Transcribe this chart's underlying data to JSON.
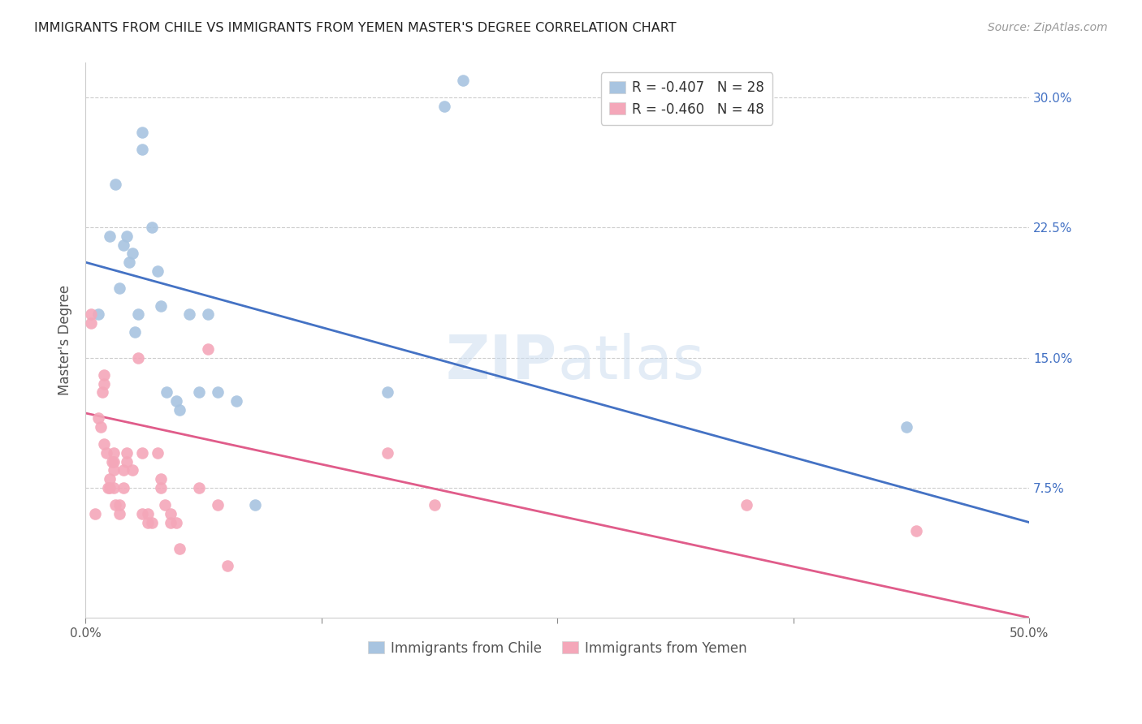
{
  "title": "IMMIGRANTS FROM CHILE VS IMMIGRANTS FROM YEMEN MASTER'S DEGREE CORRELATION CHART",
  "source": "Source: ZipAtlas.com",
  "ylabel": "Master's Degree",
  "xlim": [
    0.0,
    0.5
  ],
  "ylim": [
    0.0,
    0.32
  ],
  "ytick_positions": [
    0.075,
    0.15,
    0.225,
    0.3
  ],
  "ytick_labels_right": [
    "7.5%",
    "15.0%",
    "22.5%",
    "30.0%"
  ],
  "grid_color": "#cccccc",
  "background_color": "#ffffff",
  "chile_color": "#a8c4e0",
  "yemen_color": "#f4a7b9",
  "chile_line_color": "#4472c4",
  "yemen_line_color": "#e05c8a",
  "legend_label_chile": "R = -0.407   N = 28",
  "legend_label_yemen": "R = -0.460   N = 48",
  "legend_bottom_chile": "Immigrants from Chile",
  "legend_bottom_yemen": "Immigrants from Yemen",
  "chile_line_x0": 0.0,
  "chile_line_y0": 0.205,
  "chile_line_x1": 0.5,
  "chile_line_y1": 0.055,
  "yemen_line_x0": 0.0,
  "yemen_line_y0": 0.118,
  "yemen_line_x1": 0.5,
  "yemen_line_y1": 0.0,
  "chile_x": [
    0.007,
    0.013,
    0.016,
    0.018,
    0.02,
    0.022,
    0.023,
    0.025,
    0.026,
    0.028,
    0.03,
    0.03,
    0.035,
    0.038,
    0.04,
    0.043,
    0.048,
    0.05,
    0.055,
    0.06,
    0.065,
    0.07,
    0.08,
    0.09,
    0.16,
    0.19,
    0.2,
    0.435
  ],
  "chile_y": [
    0.175,
    0.22,
    0.25,
    0.19,
    0.215,
    0.22,
    0.205,
    0.21,
    0.165,
    0.175,
    0.28,
    0.27,
    0.225,
    0.2,
    0.18,
    0.13,
    0.125,
    0.12,
    0.175,
    0.13,
    0.175,
    0.13,
    0.125,
    0.065,
    0.13,
    0.295,
    0.31,
    0.11
  ],
  "yemen_x": [
    0.003,
    0.003,
    0.005,
    0.007,
    0.008,
    0.009,
    0.01,
    0.01,
    0.01,
    0.011,
    0.012,
    0.013,
    0.013,
    0.014,
    0.015,
    0.015,
    0.015,
    0.015,
    0.016,
    0.018,
    0.018,
    0.02,
    0.02,
    0.022,
    0.022,
    0.025,
    0.028,
    0.03,
    0.03,
    0.033,
    0.033,
    0.035,
    0.038,
    0.04,
    0.04,
    0.042,
    0.045,
    0.045,
    0.048,
    0.05,
    0.06,
    0.065,
    0.07,
    0.075,
    0.16,
    0.185,
    0.35,
    0.44
  ],
  "yemen_y": [
    0.175,
    0.17,
    0.06,
    0.115,
    0.11,
    0.13,
    0.14,
    0.135,
    0.1,
    0.095,
    0.075,
    0.08,
    0.075,
    0.09,
    0.095,
    0.09,
    0.085,
    0.075,
    0.065,
    0.065,
    0.06,
    0.085,
    0.075,
    0.095,
    0.09,
    0.085,
    0.15,
    0.095,
    0.06,
    0.06,
    0.055,
    0.055,
    0.095,
    0.08,
    0.075,
    0.065,
    0.06,
    0.055,
    0.055,
    0.04,
    0.075,
    0.155,
    0.065,
    0.03,
    0.095,
    0.065,
    0.065,
    0.05
  ]
}
